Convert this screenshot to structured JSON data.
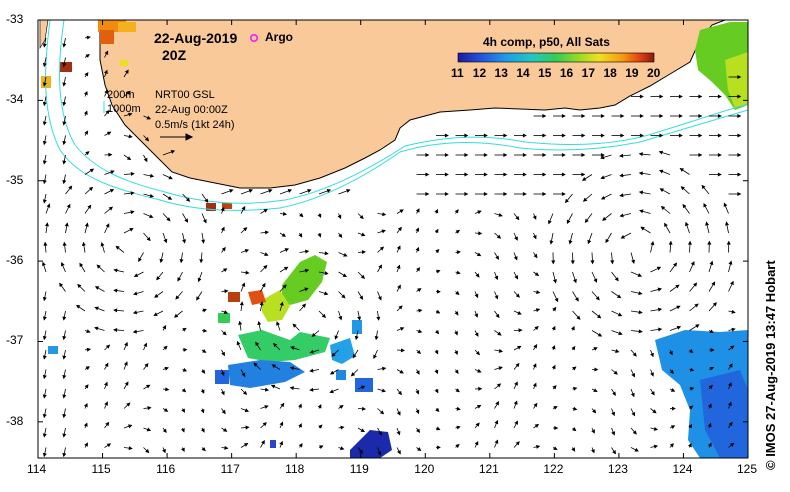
{
  "header": {
    "date": "22-Aug-2019",
    "time": "20Z",
    "argo_label": "Argo",
    "colorbar_title": "4h comp, p50, All Sats",
    "colorbar_ticks": [
      "11",
      "12",
      "13",
      "14",
      "15",
      "16",
      "17",
      "18",
      "19",
      "20"
    ]
  },
  "legend": {
    "depth_200": "200m",
    "depth_1000": "1000m",
    "product": "NRT00 GSL",
    "product_time": "22-Aug 00:00Z",
    "vector_scale": "0.5m/s (1kt 24h)"
  },
  "axes": {
    "lat_ticks": [
      "-33",
      "-34",
      "-35",
      "-36",
      "-37",
      "-38"
    ],
    "lon_ticks": [
      "114",
      "115",
      "116",
      "117",
      "118",
      "119",
      "120",
      "121",
      "122",
      "123",
      "124",
      "125"
    ]
  },
  "credit": "© IMOS 27-Aug-2019 13:47 Hobart",
  "colors": {
    "land": "#f9c99a",
    "isobath": "#33dddd",
    "argo_marker": "#ee22ee"
  }
}
